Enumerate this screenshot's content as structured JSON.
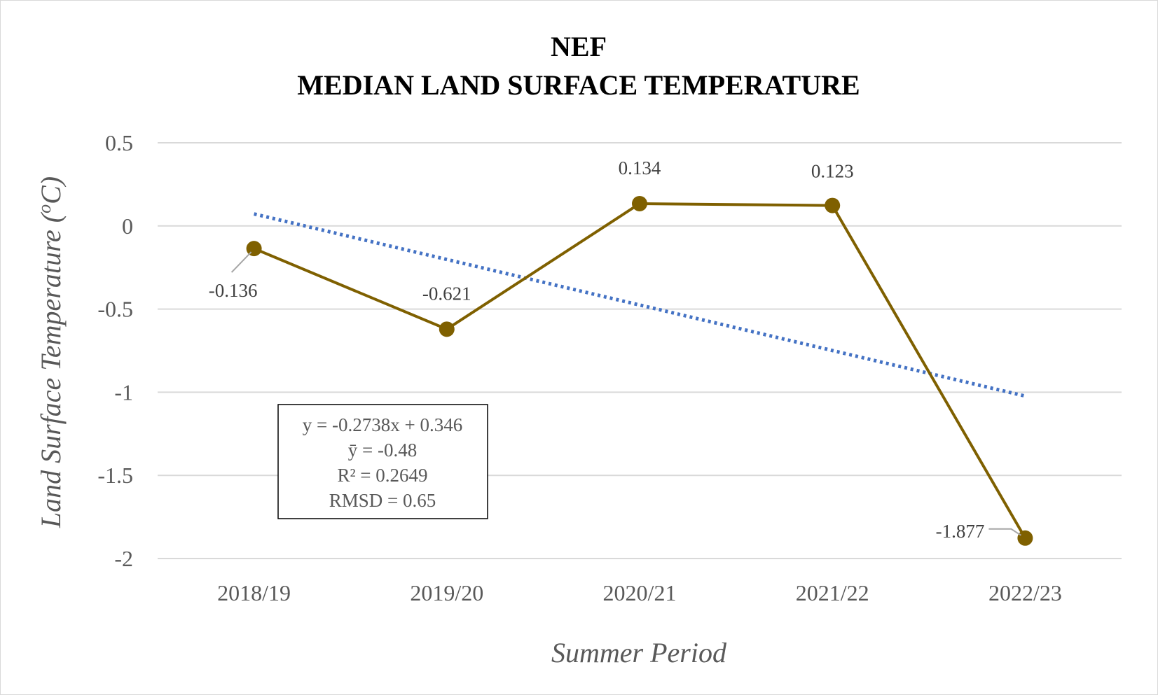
{
  "chart_data": {
    "type": "line",
    "title_line1": "NEF",
    "title_line2": "MEDIAN LAND SURFACE TEMPERATURE",
    "xlabel": "Summer Period",
    "ylabel_main": "Land Surface Temperature (",
    "ylabel_sup": "o",
    "ylabel_end": "C)",
    "categories": [
      "2018/19",
      "2019/20",
      "2020/21",
      "2021/22",
      "2022/23"
    ],
    "series": [
      {
        "values": [
          -0.136,
          -0.621,
          0.134,
          0.123,
          -1.877
        ],
        "labels": [
          "-0.136",
          "-0.621",
          "0.134",
          "0.123",
          "-1.877"
        ],
        "color": "#7f6000"
      }
    ],
    "trendline": {
      "slope": -0.2738,
      "intercept": 0.346,
      "color": "#4472c4",
      "style": "dotted"
    },
    "ylim": [
      -2,
      0.5
    ],
    "yticks": [
      "0.5",
      "0",
      "-0.5",
      "-1",
      "-1.5",
      "-2"
    ],
    "ytick_values": [
      0.5,
      0,
      -0.5,
      -1,
      -1.5,
      -2
    ],
    "grid": true,
    "legend": "none",
    "stats_box": [
      "y = -0.2738x + 0.346",
      "ȳ = -0.48",
      "R² = 0.2649",
      "RMSD = 0.65"
    ]
  }
}
